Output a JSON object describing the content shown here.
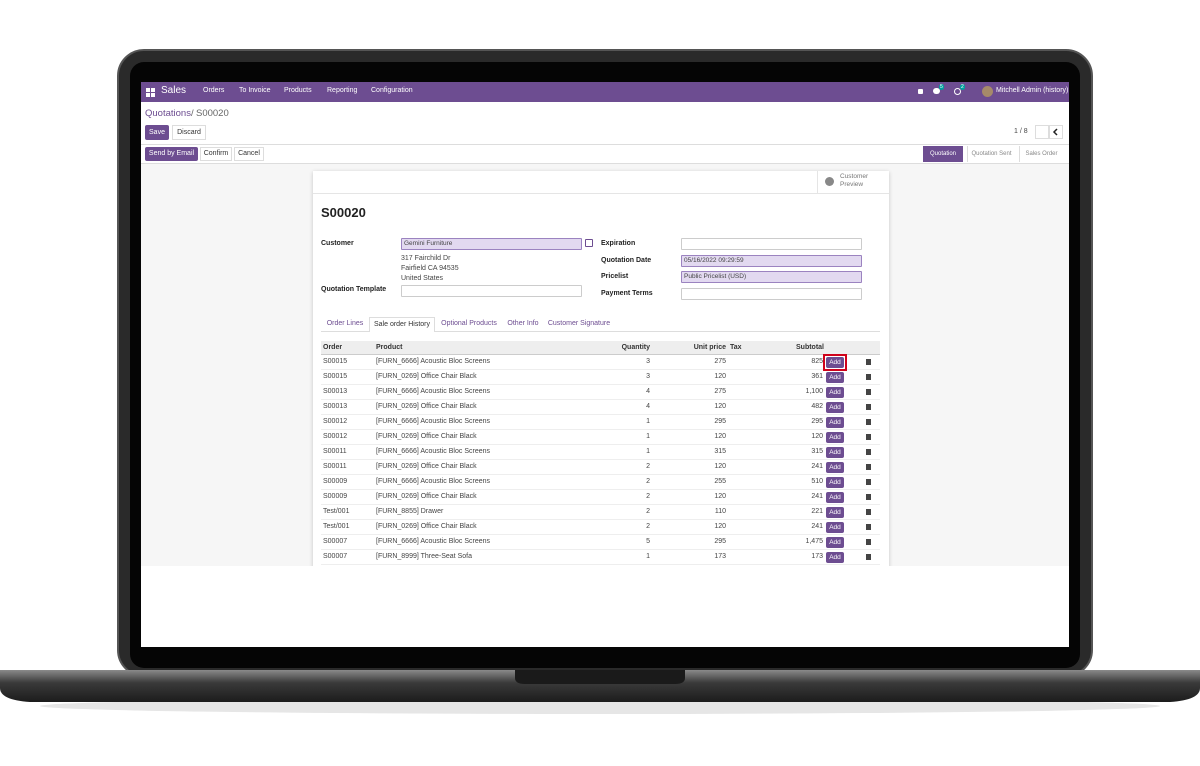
{
  "navbar": {
    "app": "Sales",
    "menu": [
      "Orders",
      "To Invoice",
      "Products",
      "Reporting",
      "Configuration"
    ],
    "badges": [
      "5",
      "2"
    ],
    "user": "Mitchell Admin (history)"
  },
  "breadcrumb": {
    "parent": "Quotations",
    "separator": "/",
    "current": "S00020"
  },
  "buttons": {
    "save": "Save",
    "discard": "Discard",
    "send": "Send by Email",
    "confirm": "Confirm",
    "cancel": "Cancel"
  },
  "pager": "1 / 8",
  "status": [
    "Quotation",
    "Quotation Sent",
    "Sales Order"
  ],
  "preview": "Customer Preview",
  "form": {
    "title": "S00020",
    "left": [
      {
        "label": "Customer",
        "value": "Gemini Furniture",
        "address": [
          "317 Fairchild Dr",
          "Fairfield CA 94535",
          "United States"
        ]
      },
      {
        "label": "Quotation Template"
      }
    ],
    "right": [
      {
        "label": "Expiration"
      },
      {
        "label": "Quotation Date",
        "value": "05/16/2022 09:29:59"
      },
      {
        "label": "Pricelist",
        "value": "Public Pricelist (USD)"
      },
      {
        "label": "Payment Terms"
      }
    ]
  },
  "tabs": [
    "Order Lines",
    "Sale order History",
    "Optional Products",
    "Other Info",
    "Customer Signature"
  ],
  "table": {
    "headers": [
      "Order",
      "Product",
      "Quantity",
      "Unit price",
      "Tax",
      "Subtotal"
    ],
    "add_label": "Add",
    "rows": [
      [
        "S00015",
        "[FURN_6666] Acoustic Bloc Screens",
        "3",
        "275",
        "825"
      ],
      [
        "S00015",
        "[FURN_0269] Office Chair Black",
        "3",
        "120",
        "361"
      ],
      [
        "S00013",
        "[FURN_6666] Acoustic Bloc Screens",
        "4",
        "275",
        "1,100"
      ],
      [
        "S00013",
        "[FURN_0269] Office Chair Black",
        "4",
        "120",
        "482"
      ],
      [
        "S00012",
        "[FURN_6666] Acoustic Bloc Screens",
        "1",
        "295",
        "295"
      ],
      [
        "S00012",
        "[FURN_0269] Office Chair Black",
        "1",
        "120",
        "120"
      ],
      [
        "S00011",
        "[FURN_6666] Acoustic Bloc Screens",
        "1",
        "315",
        "315"
      ],
      [
        "S00011",
        "[FURN_0269] Office Chair Black",
        "2",
        "120",
        "241"
      ],
      [
        "S00009",
        "[FURN_6666] Acoustic Bloc Screens",
        "2",
        "255",
        "510"
      ],
      [
        "S00009",
        "[FURN_0269] Office Chair Black",
        "2",
        "120",
        "241"
      ],
      [
        "Test/001",
        "[FURN_8855] Drawer",
        "2",
        "110",
        "221"
      ],
      [
        "Test/001",
        "[FURN_0269] Office Chair Black",
        "2",
        "120",
        "241"
      ],
      [
        "S00007",
        "[FURN_6666] Acoustic Bloc Screens",
        "5",
        "295",
        "1,475"
      ],
      [
        "S00007",
        "[FURN_8999] Three-Seat Sofa",
        "1",
        "173",
        "173"
      ]
    ]
  }
}
